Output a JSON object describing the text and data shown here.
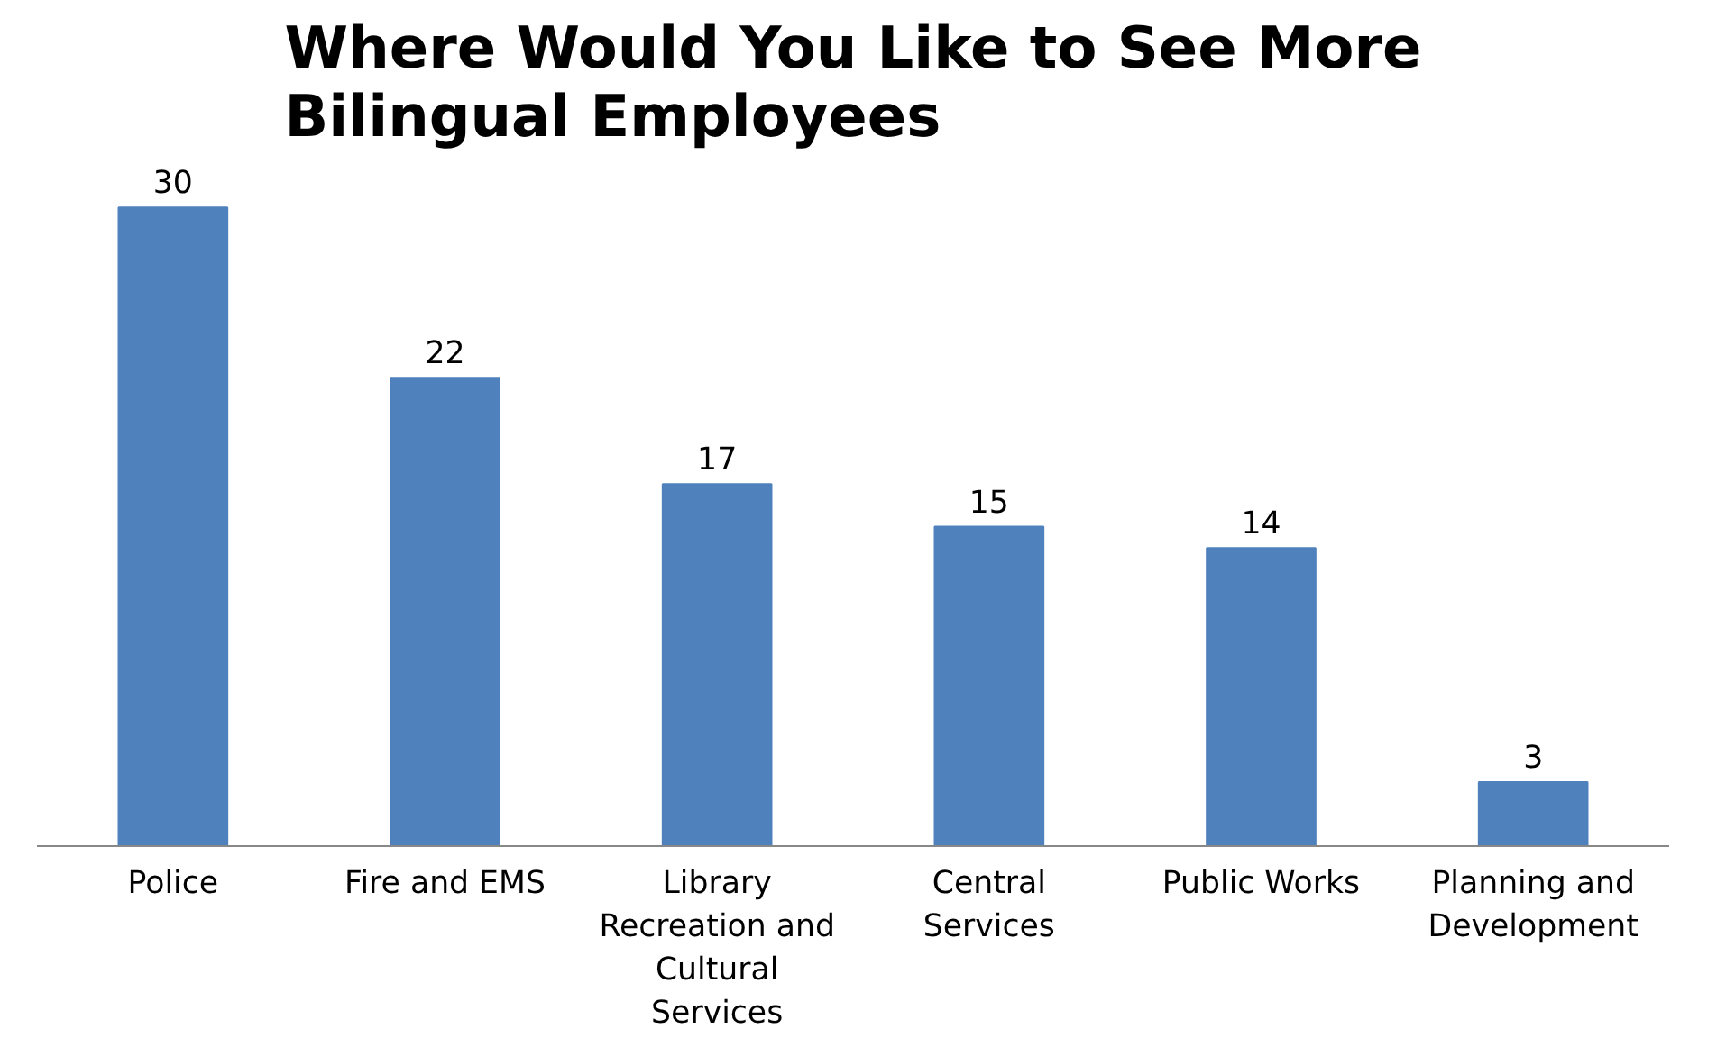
{
  "chart_data": {
    "type": "bar",
    "title": "Where Would You Like to See More Bilingual Employees",
    "categories": [
      "Police",
      "Fire and EMS",
      "Library Recreation and Cultural Services",
      "Central Services",
      "Public Works",
      "Planning and Development"
    ],
    "values": [
      30,
      22,
      17,
      15,
      14,
      3
    ],
    "color": "#4f81bd",
    "data_labels": true,
    "grid": false
  }
}
